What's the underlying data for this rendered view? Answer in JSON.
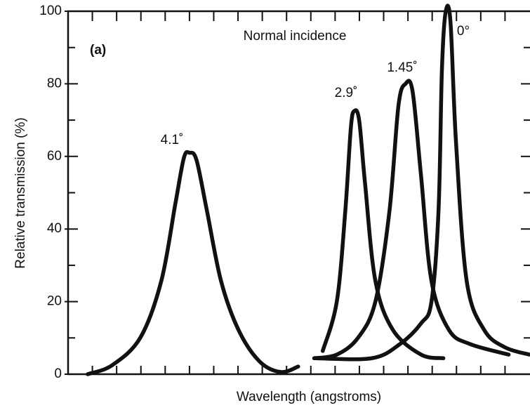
{
  "chart_data": {
    "type": "line",
    "title": "Normal incidence",
    "annotations": [
      "(a)"
    ],
    "x_label": "Wavelength (angstroms)",
    "y_label": "Relative transmission (%)",
    "xlim": [
      0,
      19
    ],
    "xticks": [
      1,
      2,
      3,
      4,
      5,
      6,
      7,
      8,
      9,
      10,
      11,
      12,
      13,
      14,
      15,
      16,
      17,
      18
    ],
    "ylim": [
      0,
      100
    ],
    "yticks": [
      0,
      20,
      40,
      60,
      80,
      100
    ],
    "yticks_minor": [
      10,
      30,
      50,
      70,
      90
    ],
    "grid": false,
    "series": [
      {
        "name": "4.1˚",
        "color": "#111111",
        "x": [
          0.81,
          1.82,
          2.98,
          3.84,
          4.42,
          4.77,
          5.0,
          5.29,
          5.72,
          6.3,
          7.02,
          7.89,
          8.76,
          9.48
        ],
        "values": [
          0,
          2.5,
          10.1,
          25.7,
          47,
          59.6,
          61,
          59,
          45,
          25.7,
          12.2,
          3.5,
          0.6,
          2.1
        ]
      },
      {
        "name": "2.9˚",
        "color": "#111111",
        "x": [
          10.49,
          11.07,
          11.42,
          11.65,
          11.79,
          11.99,
          12.23,
          12.66,
          13.38,
          14.54,
          15.46
        ],
        "values": [
          6.4,
          20,
          45,
          68,
          72.5,
          70,
          52.8,
          25.7,
          12.2,
          5.4,
          4.4
        ]
      },
      {
        "name": "1.45˚",
        "color": "#111111",
        "x": [
          10.14,
          11.07,
          11.94,
          12.66,
          13.24,
          13.61,
          13.9,
          14.19,
          14.54,
          14.97,
          15.69,
          16.56,
          18.15
        ],
        "values": [
          4.4,
          5.4,
          10,
          20,
          45,
          74,
          80,
          78,
          54.7,
          25.7,
          12.2,
          8.3,
          5.4
        ]
      },
      {
        "name": "0°",
        "color": "#111111",
        "x": [
          10.14,
          12.51,
          13.67,
          14.54,
          14.97,
          15.26,
          15.4,
          15.55,
          15.75,
          15.98,
          16.42,
          17.14,
          18.0,
          19.0
        ],
        "values": [
          4.4,
          4.4,
          8.3,
          14,
          20,
          45,
          83.8,
          99.6,
          97.3,
          64,
          25.7,
          12.2,
          7.4,
          5.4
        ]
      }
    ]
  }
}
